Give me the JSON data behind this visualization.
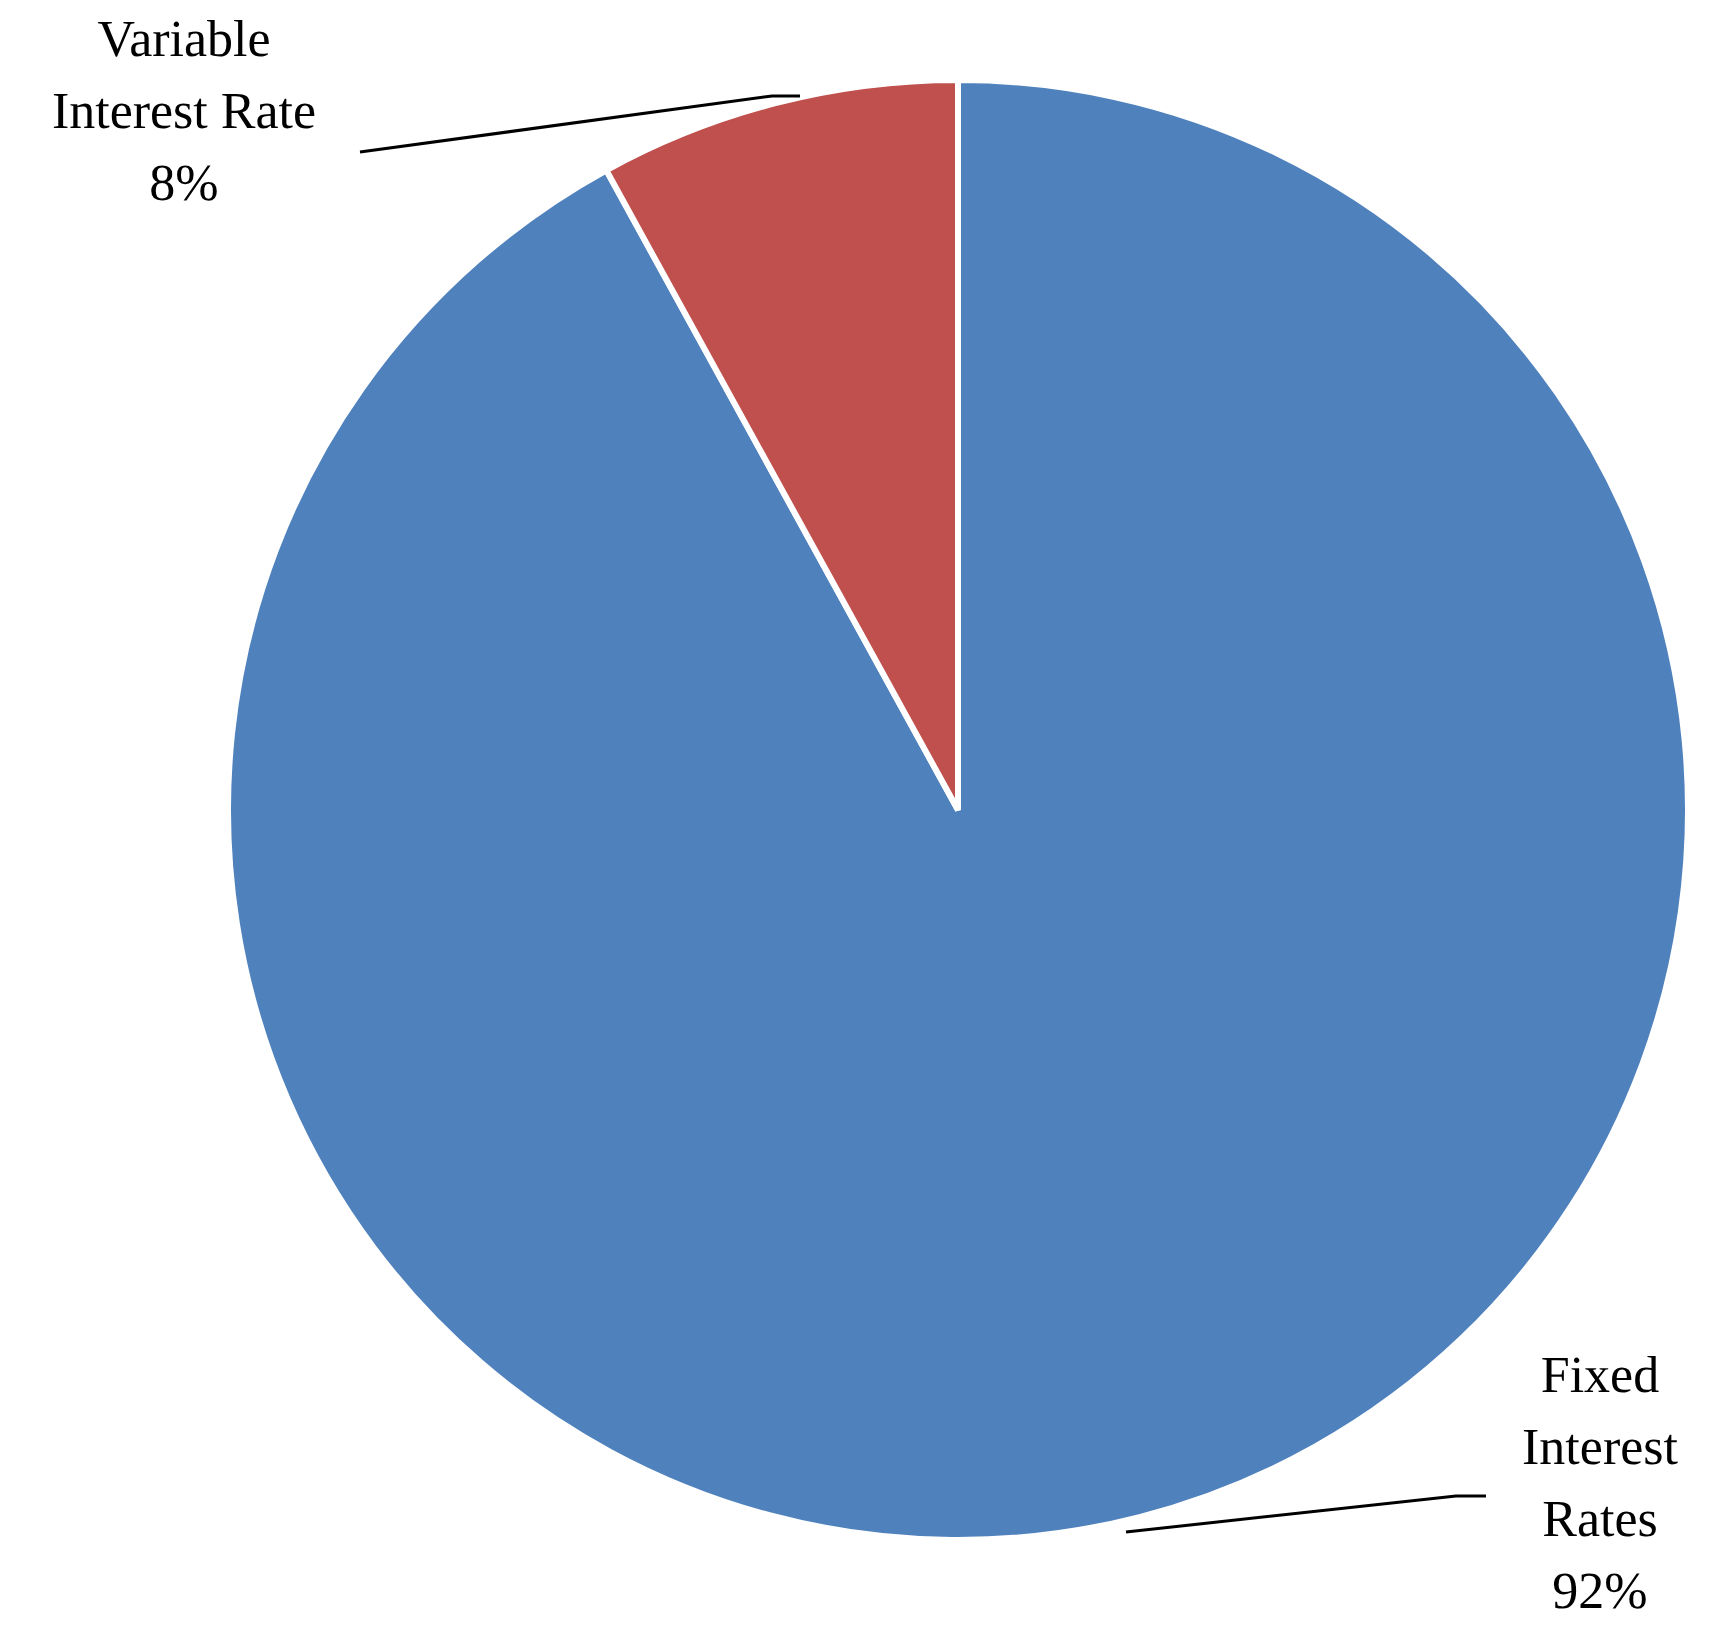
{
  "chart_data": {
    "type": "pie",
    "categories": [
      "Fixed Interest Rates",
      "Variable Interest Rate"
    ],
    "values": [
      92,
      8
    ],
    "colors": [
      "#4f81bd",
      "#c0504d"
    ],
    "value_labels": [
      "92%",
      "8%"
    ],
    "legend": false
  }
}
